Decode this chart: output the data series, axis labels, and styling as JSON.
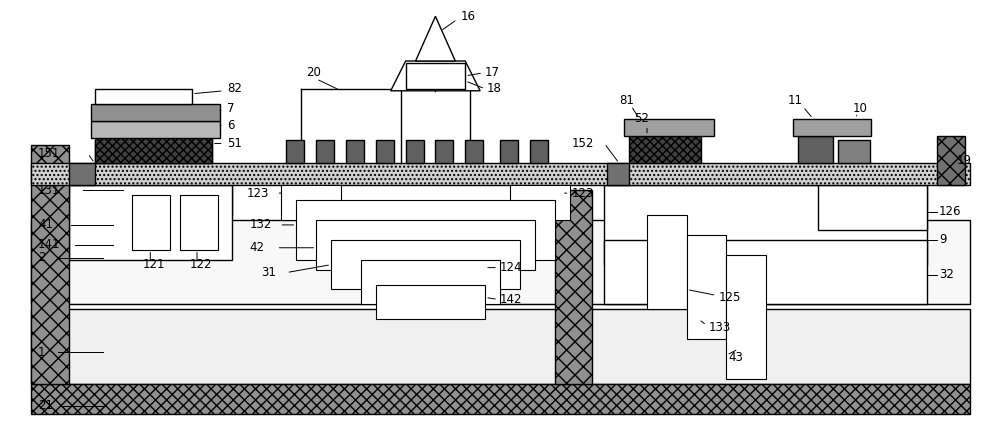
{
  "fig_width": 10.0,
  "fig_height": 4.22,
  "bg_color": "#ffffff",
  "lc": "#000000",
  "gray_dark": "#707070",
  "gray_med": "#a0a0a0",
  "gray_light": "#d0d0d0",
  "gray_xlight": "#e8e8e8",
  "gray_dotted": "#c0c0c0",
  "white": "#ffffff"
}
